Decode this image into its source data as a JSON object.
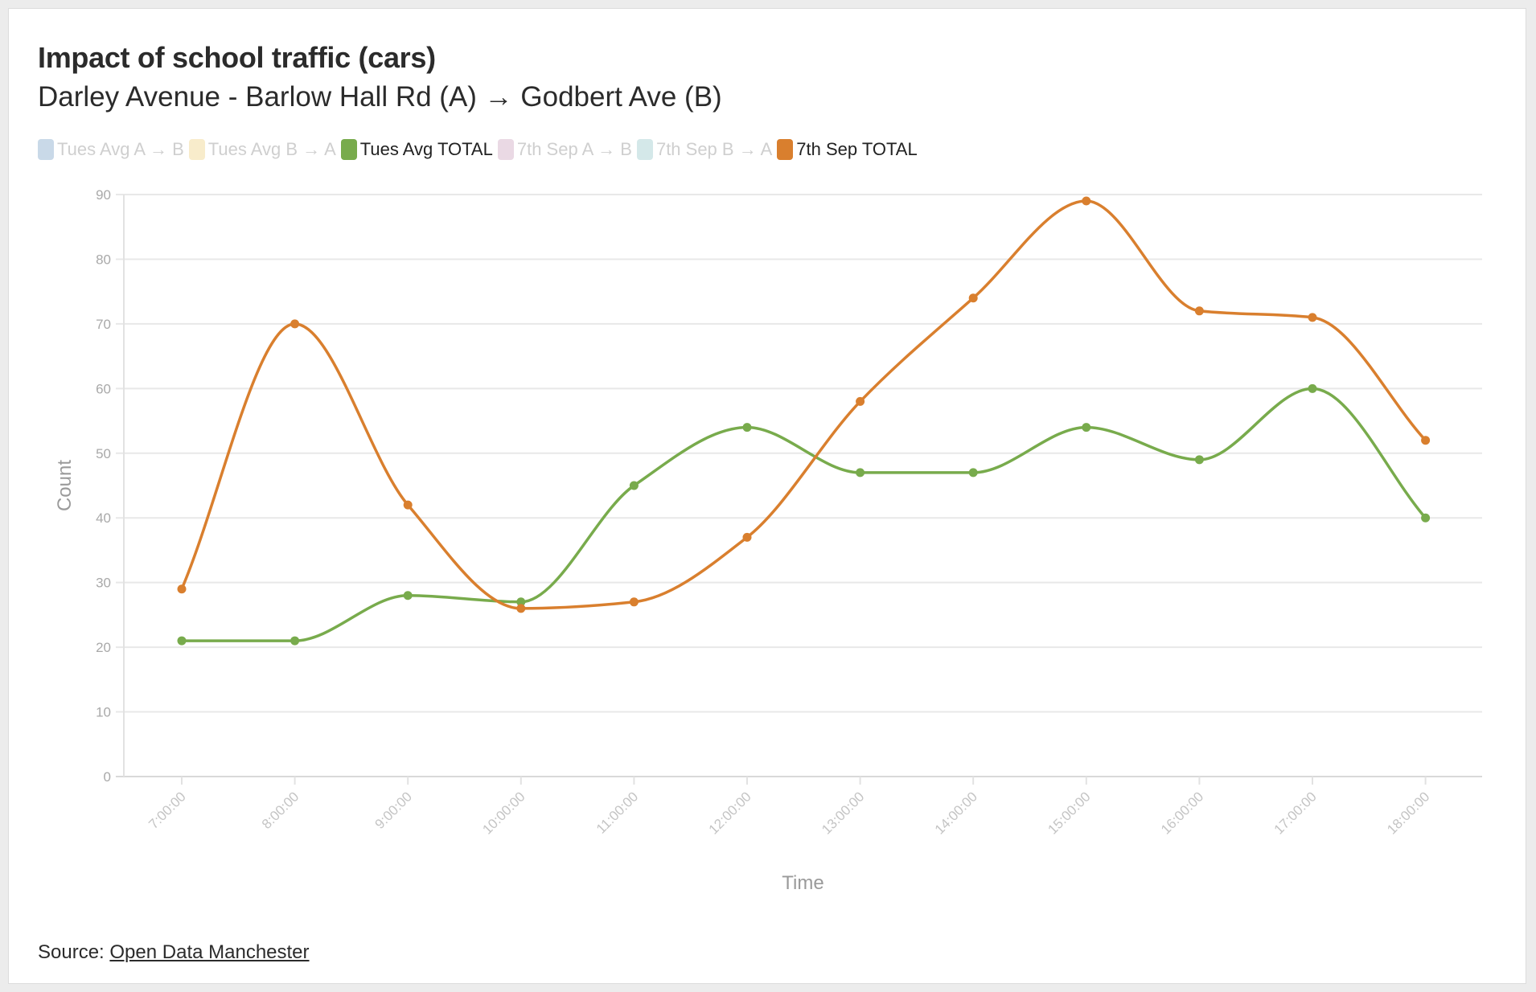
{
  "header": {
    "title": "Impact of school traffic (cars)",
    "subtitle": "Darley Avenue - Barlow Hall Rd (A) → Godbert Ave (B)"
  },
  "legend": [
    {
      "label": "Tues Avg A → B",
      "color": "#c9d9e8",
      "visible": false
    },
    {
      "label": "Tues Avg B → A",
      "color": "#f8eccb",
      "visible": false
    },
    {
      "label": "Tues Avg TOTAL",
      "color": "#78ab4c",
      "visible": true
    },
    {
      "label": "7th Sep A → B",
      "color": "#ead9e4",
      "visible": false
    },
    {
      "label": "7th Sep B → A",
      "color": "#d4e8e9",
      "visible": false
    },
    {
      "label": "7th Sep TOTAL",
      "color": "#d97f2e",
      "visible": true
    }
  ],
  "source": {
    "prefix": "Source: ",
    "link_text": "Open Data Manchester"
  },
  "chart_data": {
    "type": "line",
    "categories": [
      "7:00:00",
      "8:00:00",
      "9:00:00",
      "10:00:00",
      "11:00:00",
      "12:00:00",
      "13:00:00",
      "14:00:00",
      "15:00:00",
      "16:00:00",
      "17:00:00",
      "18:00:00"
    ],
    "series": [
      {
        "name": "Tues Avg TOTAL",
        "color": "#78ab4c",
        "values": [
          21,
          21,
          28,
          27,
          45,
          54,
          47,
          47,
          54,
          49,
          60,
          40
        ]
      },
      {
        "name": "7th Sep TOTAL",
        "color": "#d97f2e",
        "values": [
          29,
          70,
          42,
          26,
          27,
          37,
          58,
          74,
          89,
          72,
          71,
          52
        ]
      }
    ],
    "xlabel": "Time",
    "ylabel": "Count",
    "ylim": [
      0,
      90
    ],
    "yticks": [
      0,
      10,
      20,
      30,
      40,
      50,
      60,
      70,
      80,
      90
    ],
    "grid": true,
    "smooth": true
  }
}
